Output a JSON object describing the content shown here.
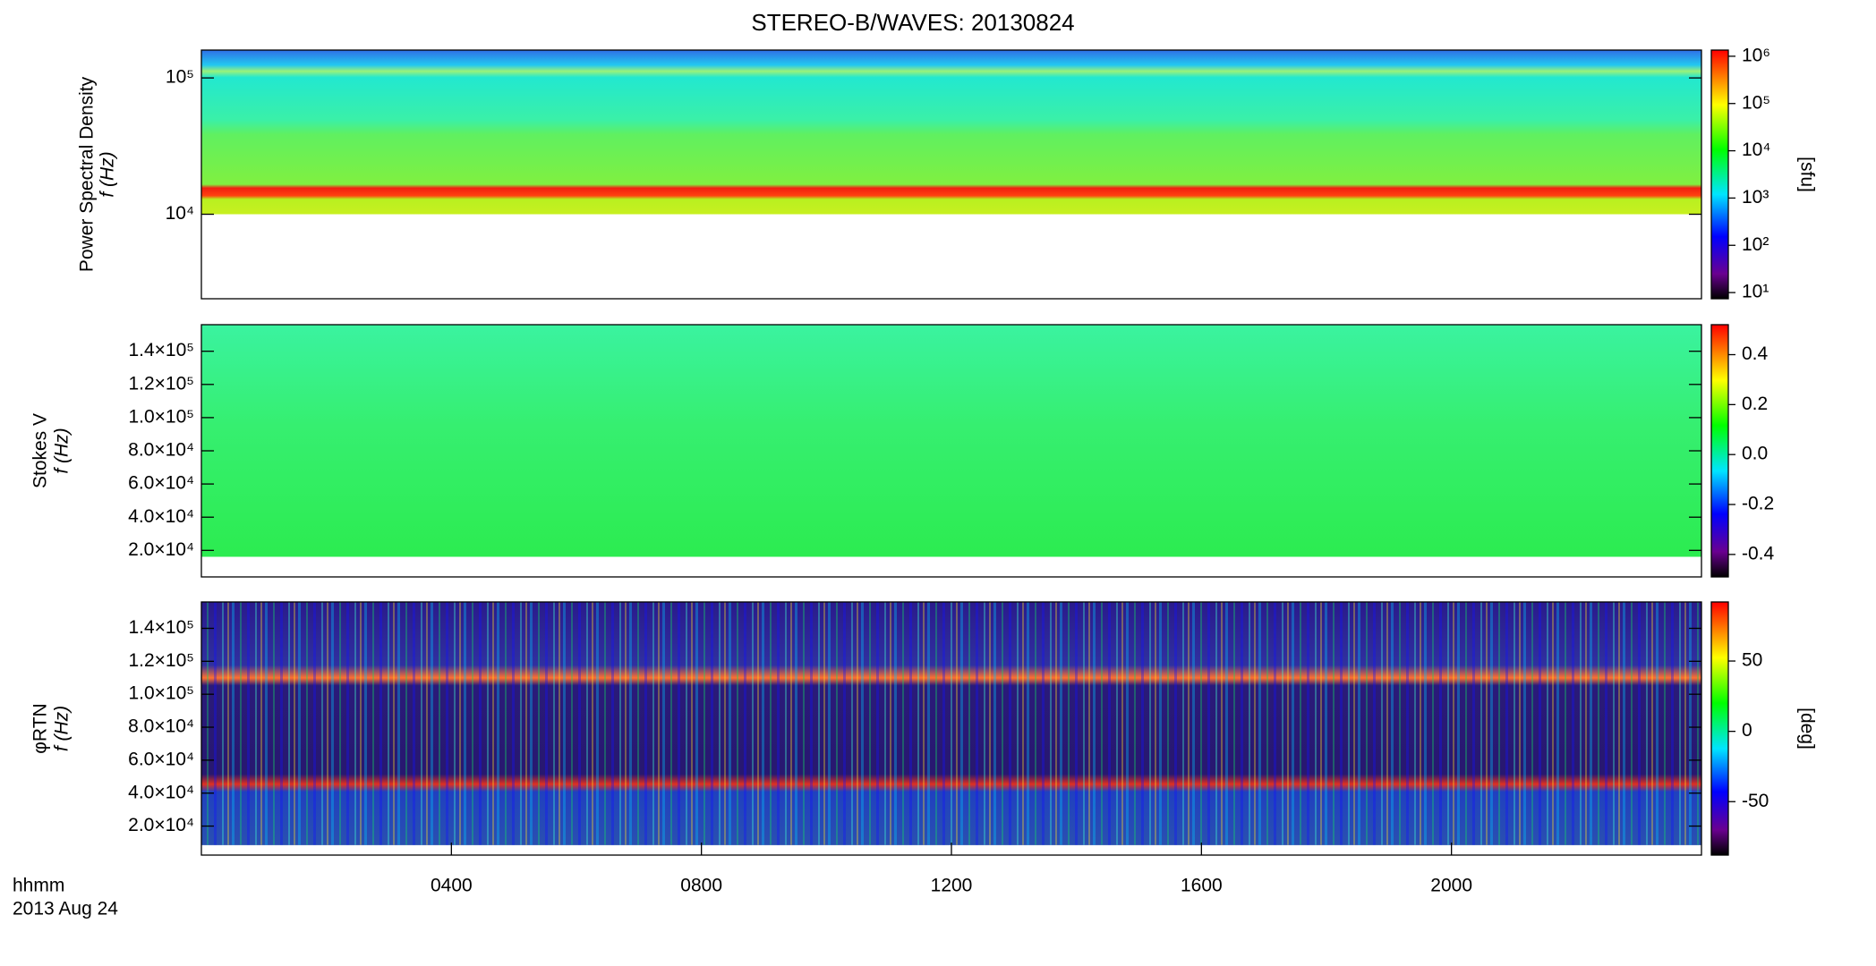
{
  "chart_data": [
    {
      "type": "heatmap",
      "title": "STEREO-B/WAVES: 20130824",
      "ylabel": "Power Spectral Density",
      "ylabel2": "f (Hz)",
      "yscale": "log",
      "ylim": [
        2400,
        160000
      ],
      "yticks": [
        {
          "value": 10000,
          "label": "10⁴"
        },
        {
          "value": 100000,
          "label": "10⁵"
        }
      ],
      "xlim": [
        0,
        24
      ],
      "colorbar": {
        "scale": "log",
        "lim": [
          7.4,
          1350000
        ],
        "label": "[sfu]",
        "ticks": [
          {
            "value": 10,
            "label": "10¹"
          },
          {
            "value": 100,
            "label": "10²"
          },
          {
            "value": 1000,
            "label": "10³"
          },
          {
            "value": 10000,
            "label": "10⁴"
          },
          {
            "value": 100000,
            "label": "10⁵"
          },
          {
            "value": 1000000,
            "label": "10⁶"
          }
        ]
      }
    },
    {
      "type": "heatmap",
      "ylabel": "Stokes V",
      "ylabel2": "f (Hz)",
      "yscale": "linear",
      "ylim": [
        4000,
        156000
      ],
      "yticks": [
        {
          "value": 20000,
          "label": "2.0×10⁴"
        },
        {
          "value": 40000,
          "label": "4.0×10⁴"
        },
        {
          "value": 60000,
          "label": "6.0×10⁴"
        },
        {
          "value": 80000,
          "label": "8.0×10⁴"
        },
        {
          "value": 100000,
          "label": "1.0×10⁵"
        },
        {
          "value": 120000,
          "label": "1.2×10⁵"
        },
        {
          "value": 140000,
          "label": "1.4×10⁵"
        }
      ],
      "xlim": [
        0,
        24
      ],
      "colorbar": {
        "scale": "linear",
        "lim": [
          -0.49,
          0.52
        ],
        "ticks": [
          -0.4,
          -0.2,
          {
            "value": 0,
            "label": "0.0"
          },
          0.2,
          0.4
        ]
      }
    },
    {
      "type": "heatmap",
      "ylabel": "φRTN",
      "ylabel2": "f (Hz)",
      "yscale": "linear",
      "ylim": [
        2400,
        156000
      ],
      "yticks": [
        {
          "value": 20000,
          "label": "2.0×10⁴"
        },
        {
          "value": 40000,
          "label": "4.0×10⁴"
        },
        {
          "value": 60000,
          "label": "6.0×10⁴"
        },
        {
          "value": 80000,
          "label": "8.0×10⁴"
        },
        {
          "value": 100000,
          "label": "1.0×10⁵"
        },
        {
          "value": 120000,
          "label": "1.2×10⁵"
        },
        {
          "value": 140000,
          "label": "1.4×10⁵"
        }
      ],
      "xlim": [
        0,
        24
      ],
      "xticks": [
        {
          "value": 4,
          "label": "0400"
        },
        {
          "value": 8,
          "label": "0800"
        },
        {
          "value": 12,
          "label": "1200"
        },
        {
          "value": 16,
          "label": "1600"
        },
        {
          "value": 20,
          "label": "2000"
        }
      ],
      "xlabel": "hhmm",
      "date": "2013 Aug 24",
      "colorbar": {
        "scale": "linear",
        "lim": [
          -88,
          92
        ],
        "label": "[deg]",
        "ticks": [
          -50,
          0,
          50
        ]
      }
    }
  ]
}
